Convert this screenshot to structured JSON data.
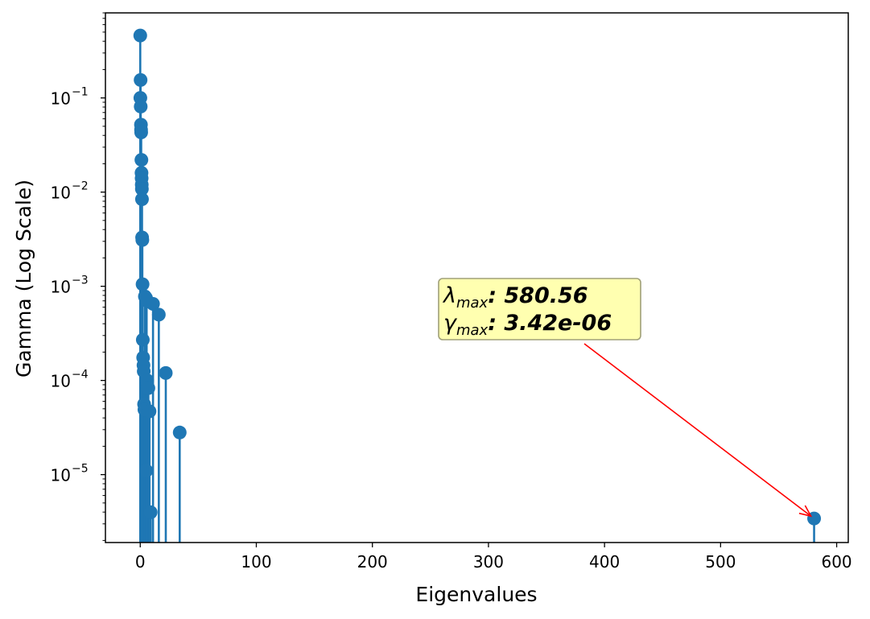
{
  "chart_data": {
    "type": "stem",
    "xlabel": "Eigenvalues",
    "ylabel": "Gamma (Log Scale)",
    "xlim": [
      -30,
      610
    ],
    "ylim": [
      1.9e-06,
      0.8
    ],
    "y_scale": "log",
    "grid": false,
    "x_ticks": [
      0,
      100,
      200,
      300,
      400,
      500,
      600
    ],
    "x_tick_labels": [
      "0",
      "100",
      "200",
      "300",
      "400",
      "500",
      "600"
    ],
    "y_ticks": [
      1e-05,
      0.0001,
      0.001,
      0.01,
      0.1
    ],
    "y_tick_mantissa": [
      "10",
      "10",
      "10",
      "10",
      "10"
    ],
    "y_tick_exponents": [
      "−5",
      "−4",
      "−3",
      "−2",
      "−1"
    ],
    "series": [
      {
        "color": "#1f77b4",
        "x": [
          0.0,
          0.3,
          0.1,
          0.4,
          0.6,
          0.7,
          0.8,
          1.0,
          1.1,
          1.2,
          1.3,
          1.4,
          1.5,
          1.6,
          1.8,
          2.0,
          2.2,
          2.5,
          2.8,
          3.0,
          3.3,
          3.6,
          4.0,
          4.5,
          5.0,
          5.5,
          6.0,
          7.0,
          8.0,
          9.0,
          11.0,
          16.0,
          22.0,
          34.0,
          5.2,
          580.56
        ],
        "y": [
          0.46,
          0.155,
          0.1,
          0.081,
          0.052,
          0.046,
          0.043,
          0.022,
          0.016,
          0.014,
          0.012,
          0.0108,
          0.0084,
          0.0033,
          0.0031,
          0.00105,
          0.00027,
          0.000175,
          0.000145,
          0.000125,
          5.6e-05,
          4.9e-05,
          0.00078,
          0.00076,
          0.00075,
          0.000705,
          0.0001,
          8.3e-05,
          4.7e-05,
          3.98e-06,
          0.00065,
          0.0005,
          0.00012,
          2.8e-05,
          1.1e-05,
          3.42e-06
        ]
      }
    ],
    "annotation": {
      "lambda_symbol": "λ",
      "gamma_symbol": "γ",
      "subscript": "max",
      "lambda_value": ": 580.56",
      "gamma_value": ": 3.42e-06",
      "box_color": "#ffffb0",
      "box_border": "#a0a078",
      "arrow_color": "#ff0000",
      "target": [
        580.56,
        3.42e-06
      ]
    }
  }
}
